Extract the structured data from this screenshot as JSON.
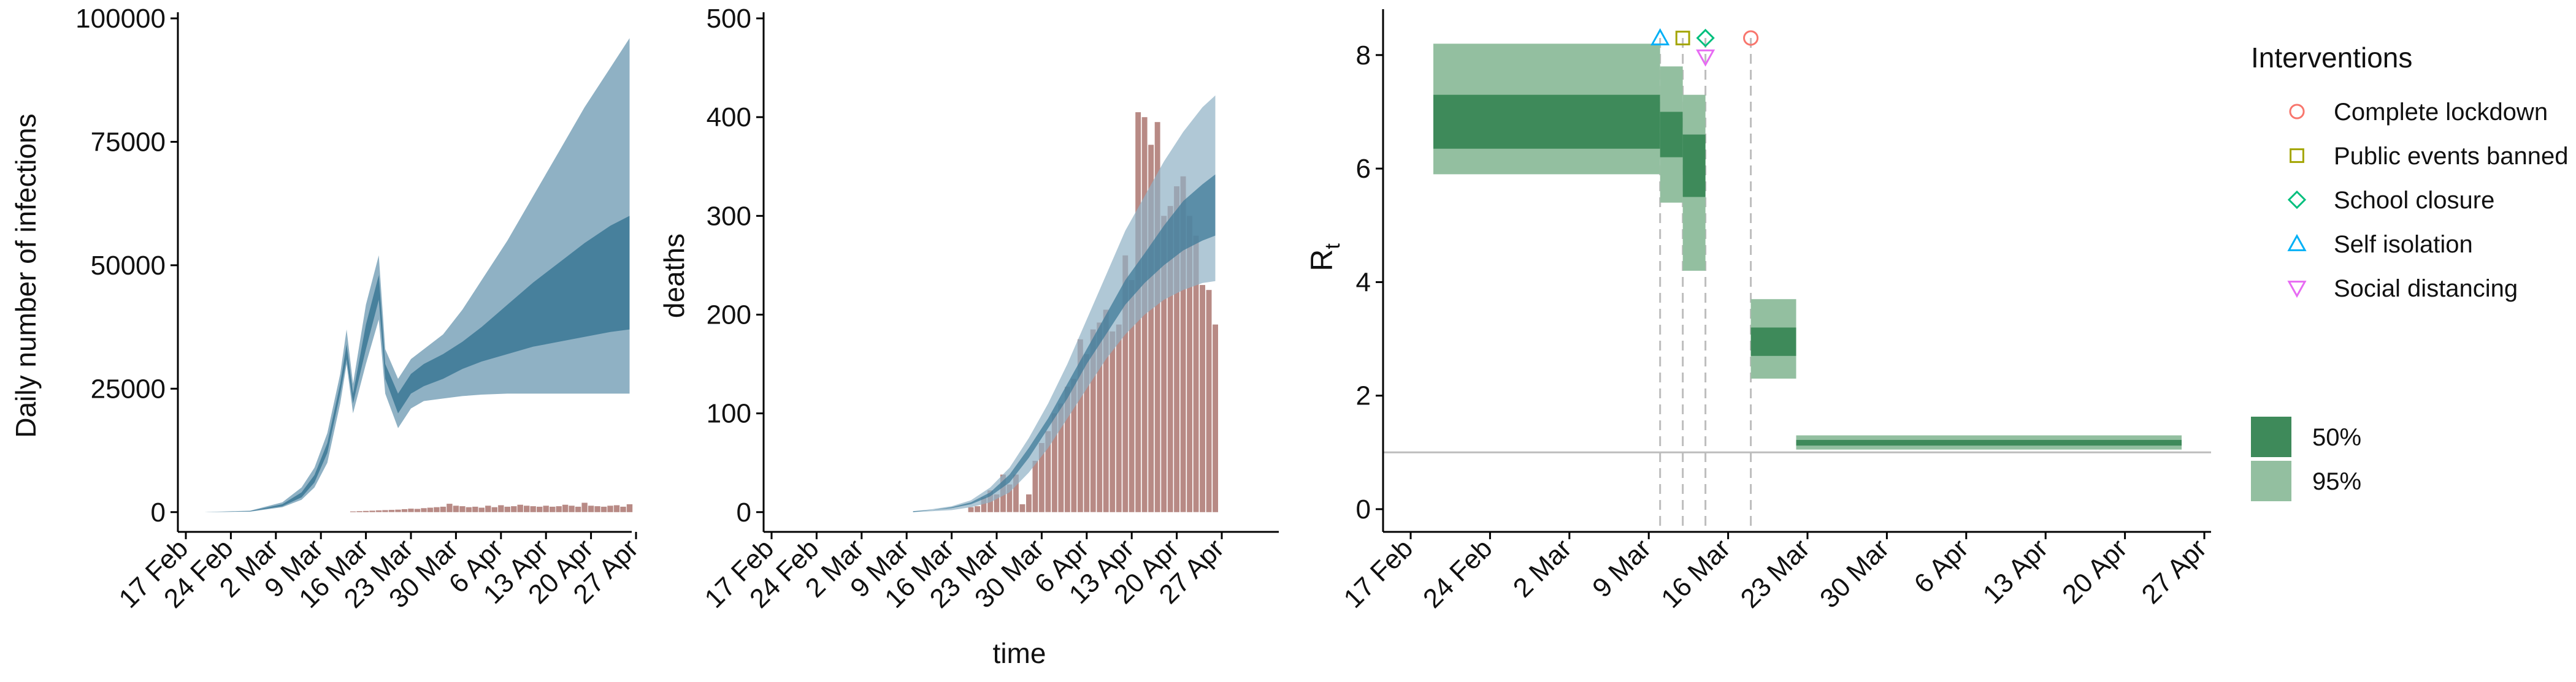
{
  "colors": {
    "infections_outer": "#8fb1c4",
    "infections_inner": "#3f7b98",
    "deaths_bars": "#b88a85",
    "rt_95": "#93bfa0",
    "rt_50": "#3e8a5a",
    "axis": "#000000",
    "vline": "#bdbdbd",
    "hline": "#bdbdbd",
    "lockdown": "#f8766d",
    "public_events": "#a3a500",
    "school_closure": "#00bf7d",
    "self_isolation": "#00b0f6",
    "social_distancing": "#e76bf3"
  },
  "chart_data": [
    {
      "type": "area",
      "title": "",
      "xlabel": "",
      "ylabel": "Daily number of infections",
      "x_ticks": [
        "17 Feb",
        "24 Feb",
        "2 Mar",
        "9 Mar",
        "16 Mar",
        "23 Mar",
        "30 Mar",
        "6 Apr",
        "13 Apr",
        "20 Apr",
        "27 Apr"
      ],
      "xlim": [
        "2020-02-14",
        "2020-04-28"
      ],
      "y_ticks": [
        "0",
        "25000",
        "50000",
        "75000",
        "100000"
      ],
      "ylim": [
        -4000,
        100000
      ],
      "series": [
        {
          "band": "outer",
          "x": [
            "2020-02-20",
            "2020-02-27",
            "2020-03-03",
            "2020-03-06",
            "2020-03-08",
            "2020-03-10",
            "2020-03-12",
            "2020-03-13",
            "2020-03-14",
            "2020-03-16",
            "2020-03-18",
            "2020-03-19",
            "2020-03-21",
            "2020-03-23",
            "2020-03-25",
            "2020-03-28",
            "2020-03-31",
            "2020-04-03",
            "2020-04-07",
            "2020-04-11",
            "2020-04-15",
            "2020-04-19",
            "2020-04-23",
            "2020-04-26"
          ],
          "lower": [
            0,
            100,
            1000,
            2500,
            5000,
            10000,
            22000,
            30000,
            20000,
            30000,
            39000,
            24000,
            17000,
            21000,
            22500,
            23000,
            23500,
            23800,
            24000,
            24000,
            24000,
            24000,
            24000,
            24000
          ],
          "upper": [
            20,
            300,
            2000,
            5000,
            9000,
            16000,
            28000,
            37000,
            26000,
            42000,
            52000,
            33000,
            27000,
            31000,
            33000,
            36000,
            41000,
            47000,
            55000,
            64000,
            73000,
            82000,
            90000,
            96000
          ]
        },
        {
          "band": "inner",
          "x": [
            "2020-02-20",
            "2020-02-27",
            "2020-03-03",
            "2020-03-06",
            "2020-03-08",
            "2020-03-10",
            "2020-03-12",
            "2020-03-13",
            "2020-03-14",
            "2020-03-16",
            "2020-03-18",
            "2020-03-19",
            "2020-03-21",
            "2020-03-23",
            "2020-03-25",
            "2020-03-28",
            "2020-03-31",
            "2020-04-03",
            "2020-04-07",
            "2020-04-11",
            "2020-04-15",
            "2020-04-19",
            "2020-04-23",
            "2020-04-26"
          ],
          "lower": [
            5,
            150,
            1200,
            3000,
            6000,
            12000,
            24000,
            31000,
            22000,
            33000,
            43000,
            27000,
            20000,
            24000,
            25500,
            27000,
            29000,
            30500,
            32000,
            33500,
            34500,
            35500,
            36500,
            37000
          ],
          "upper": [
            10,
            220,
            1600,
            4000,
            7500,
            14000,
            26000,
            34000,
            24000,
            38000,
            48000,
            30000,
            24000,
            28000,
            30000,
            32000,
            34500,
            37500,
            42000,
            46500,
            50500,
            54500,
            58000,
            60000
          ]
        }
      ],
      "bars": {
        "x": [
          "2020-03-14",
          "2020-03-15",
          "2020-03-16",
          "2020-03-17",
          "2020-03-18",
          "2020-03-19",
          "2020-03-20",
          "2020-03-21",
          "2020-03-22",
          "2020-03-23",
          "2020-03-24",
          "2020-03-25",
          "2020-03-26",
          "2020-03-27",
          "2020-03-28",
          "2020-03-29",
          "2020-03-30",
          "2020-03-31",
          "2020-04-01",
          "2020-04-02",
          "2020-04-03",
          "2020-04-04",
          "2020-04-05",
          "2020-04-06",
          "2020-04-07",
          "2020-04-08",
          "2020-04-09",
          "2020-04-10",
          "2020-04-11",
          "2020-04-12",
          "2020-04-13",
          "2020-04-14",
          "2020-04-15",
          "2020-04-16",
          "2020-04-17",
          "2020-04-18",
          "2020-04-19",
          "2020-04-20",
          "2020-04-21",
          "2020-04-22",
          "2020-04-23",
          "2020-04-24",
          "2020-04-25",
          "2020-04-26"
        ],
        "values": [
          150,
          200,
          250,
          300,
          350,
          400,
          450,
          500,
          600,
          700,
          650,
          800,
          900,
          1000,
          1100,
          1700,
          1300,
          1200,
          1000,
          1100,
          900,
          1300,
          1000,
          1400,
          1100,
          1200,
          1500,
          1300,
          1200,
          1100,
          1300,
          1100,
          1200,
          1500,
          1300,
          1100,
          1900,
          1300,
          1200,
          1100,
          1300,
          1400,
          1100,
          1600
        ]
      }
    },
    {
      "type": "bar",
      "title": "",
      "xlabel": "time",
      "ylabel": "deaths",
      "x_ticks": [
        "17 Feb",
        "24 Feb",
        "2 Mar",
        "9 Mar",
        "16 Mar",
        "23 Mar",
        "30 Mar",
        "6 Apr",
        "13 Apr",
        "20 Apr",
        "27 Apr"
      ],
      "xlim": [
        "2020-02-14",
        "2020-04-28"
      ],
      "y_ticks": [
        "0",
        "100",
        "200",
        "300",
        "400",
        "500"
      ],
      "ylim": [
        -20,
        500
      ],
      "bars": {
        "x": [
          "2020-03-19",
          "2020-03-20",
          "2020-03-21",
          "2020-03-22",
          "2020-03-23",
          "2020-03-24",
          "2020-03-25",
          "2020-03-26",
          "2020-03-27",
          "2020-03-28",
          "2020-03-29",
          "2020-03-30",
          "2020-03-31",
          "2020-04-01",
          "2020-04-02",
          "2020-04-03",
          "2020-04-04",
          "2020-04-05",
          "2020-04-06",
          "2020-04-07",
          "2020-04-08",
          "2020-04-09",
          "2020-04-10",
          "2020-04-11",
          "2020-04-12",
          "2020-04-13",
          "2020-04-14",
          "2020-04-15",
          "2020-04-16",
          "2020-04-17",
          "2020-04-18",
          "2020-04-19",
          "2020-04-20",
          "2020-04-21",
          "2020-04-22",
          "2020-04-23",
          "2020-04-24",
          "2020-04-25",
          "2020-04-26"
        ],
        "values": [
          5,
          6,
          15,
          22,
          18,
          38,
          28,
          38,
          8,
          18,
          52,
          70,
          82,
          100,
          110,
          127,
          135,
          175,
          160,
          185,
          192,
          205,
          183,
          190,
          260,
          235,
          405,
          400,
          372,
          395,
          300,
          310,
          330,
          340,
          300,
          280,
          230,
          225,
          190
        ]
      },
      "series": [
        {
          "band": "outer",
          "x": [
            "2020-03-10",
            "2020-03-13",
            "2020-03-16",
            "2020-03-19",
            "2020-03-22",
            "2020-03-25",
            "2020-03-28",
            "2020-03-31",
            "2020-04-03",
            "2020-04-06",
            "2020-04-09",
            "2020-04-12",
            "2020-04-15",
            "2020-04-18",
            "2020-04-21",
            "2020-04-24",
            "2020-04-26"
          ],
          "lower": [
            0,
            1,
            2,
            5,
            10,
            20,
            40,
            65,
            95,
            125,
            155,
            180,
            200,
            215,
            225,
            232,
            234
          ],
          "upper": [
            1,
            3,
            6,
            12,
            25,
            45,
            75,
            110,
            150,
            195,
            240,
            285,
            320,
            355,
            385,
            410,
            422
          ]
        },
        {
          "band": "inner",
          "x": [
            "2020-03-10",
            "2020-03-13",
            "2020-03-16",
            "2020-03-19",
            "2020-03-22",
            "2020-03-25",
            "2020-03-28",
            "2020-03-31",
            "2020-04-03",
            "2020-04-06",
            "2020-04-09",
            "2020-04-12",
            "2020-04-15",
            "2020-04-18",
            "2020-04-21",
            "2020-04-24",
            "2020-04-26"
          ],
          "lower": [
            0,
            2,
            4,
            8,
            16,
            30,
            55,
            85,
            115,
            150,
            180,
            210,
            232,
            250,
            265,
            275,
            280
          ],
          "upper": [
            1,
            2,
            5,
            10,
            20,
            38,
            65,
            95,
            130,
            165,
            200,
            235,
            262,
            290,
            315,
            332,
            342
          ]
        }
      ]
    },
    {
      "type": "area",
      "title": "",
      "xlabel": "",
      "ylabel": "R",
      "ylabel_sub": "t",
      "x_ticks": [
        "17 Feb",
        "24 Feb",
        "2 Mar",
        "9 Mar",
        "16 Mar",
        "23 Mar",
        "30 Mar",
        "6 Apr",
        "13 Apr",
        "20 Apr",
        "27 Apr"
      ],
      "xlim": [
        "2020-02-14",
        "2020-04-28"
      ],
      "y_ticks": [
        "0",
        "2",
        "4",
        "6",
        "8"
      ],
      "ylim": [
        -0.4,
        8.7
      ],
      "reference_line": 1,
      "segments": [
        {
          "start": "2020-02-19",
          "end": "2020-03-10",
          "lower95": 5.9,
          "upper95": 8.2,
          "lower50": 6.35,
          "upper50": 7.3
        },
        {
          "start": "2020-03-10",
          "end": "2020-03-12",
          "lower95": 5.4,
          "upper95": 7.8,
          "lower50": 6.2,
          "upper50": 7.0
        },
        {
          "start": "2020-03-12",
          "end": "2020-03-14",
          "lower95": 4.2,
          "upper95": 7.3,
          "lower50": 5.5,
          "upper50": 6.6
        },
        {
          "start": "2020-03-18",
          "end": "2020-03-22",
          "lower95": 2.3,
          "upper95": 3.7,
          "lower50": 2.7,
          "upper50": 3.2
        },
        {
          "start": "2020-03-22",
          "end": "2020-04-25",
          "lower95": 1.05,
          "upper95": 1.3,
          "lower50": 1.12,
          "upper50": 1.22
        }
      ],
      "interventions": [
        {
          "name": "Self isolation",
          "date": "2020-03-10",
          "marker": "triangle-up",
          "color_key": "self_isolation"
        },
        {
          "name": "Public events banned",
          "date": "2020-03-12",
          "marker": "square",
          "color_key": "public_events"
        },
        {
          "name": "School closure",
          "date": "2020-03-14",
          "marker": "diamond",
          "color_key": "school_closure"
        },
        {
          "name": "Social distancing",
          "date": "2020-03-14",
          "marker": "triangle-down",
          "color_key": "social_distancing"
        },
        {
          "name": "Complete lockdown",
          "date": "2020-03-18",
          "marker": "circle",
          "color_key": "lockdown"
        }
      ]
    }
  ],
  "legend": {
    "title": "Interventions",
    "items": [
      {
        "label": "Complete lockdown",
        "marker": "circle",
        "color_key": "lockdown"
      },
      {
        "label": "Public events banned",
        "marker": "square",
        "color_key": "public_events"
      },
      {
        "label": "School closure",
        "marker": "diamond",
        "color_key": "school_closure"
      },
      {
        "label": "Self isolation",
        "marker": "triangle-up",
        "color_key": "self_isolation"
      },
      {
        "label": "Social distancing",
        "marker": "triangle-down",
        "color_key": "social_distancing"
      }
    ],
    "band_items": [
      {
        "label": "50%",
        "color_key": "rt_50"
      },
      {
        "label": "95%",
        "color_key": "rt_95"
      }
    ]
  }
}
